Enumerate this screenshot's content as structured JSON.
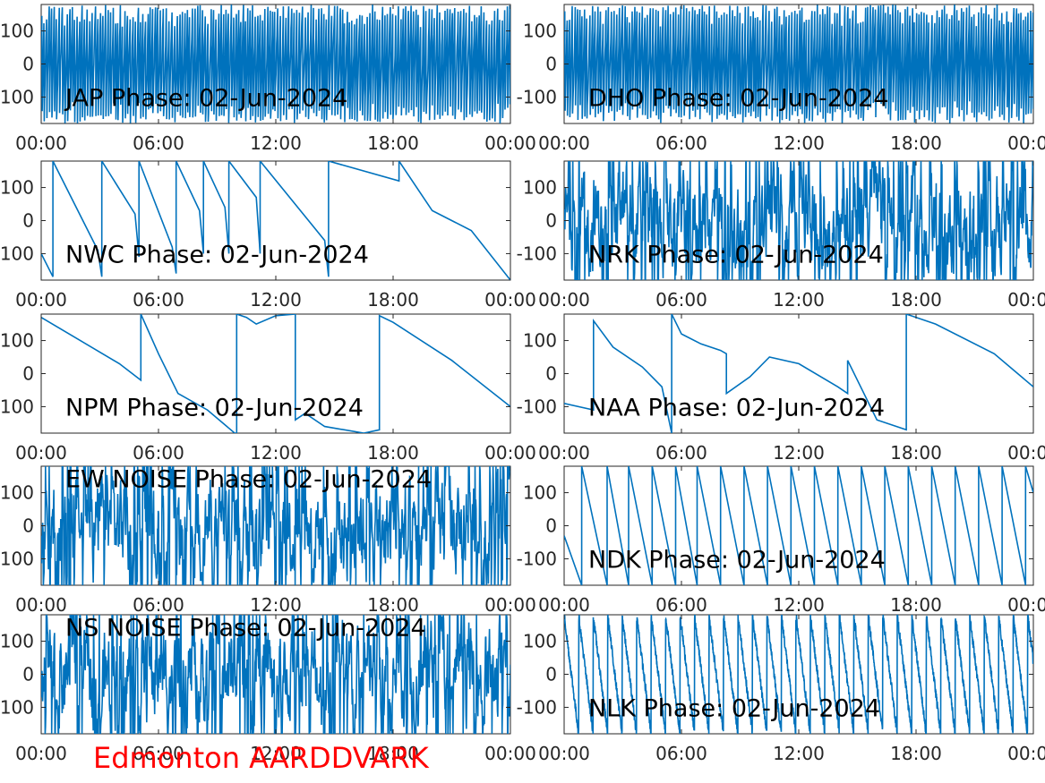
{
  "footer": {
    "label": "Edmonton AARDDVARK",
    "color": "#ff0000"
  },
  "style": {
    "line_color": "#0072bd",
    "axis_color": "#262626",
    "background": "#ffffff"
  },
  "chart_data": [
    {
      "type": "line",
      "title": "JAP Phase: 02-Jun-2024",
      "pattern": "dense",
      "x_ticks": [
        "00:00",
        "06:00",
        "12:00",
        "18:00",
        "00:00"
      ],
      "y_ticks": [
        "100",
        "0",
        "-100"
      ],
      "xlim_hours": [
        0,
        24
      ],
      "ylim": [
        -180,
        180
      ],
      "series": [
        {
          "x_hours": [],
          "y": []
        }
      ]
    },
    {
      "type": "line",
      "title": "DHO Phase: 02-Jun-2024",
      "pattern": "dense",
      "x_ticks": [
        "00:00",
        "06:00",
        "12:00",
        "18:00",
        "00:00"
      ],
      "y_ticks": [
        "100",
        "0",
        "-100"
      ],
      "xlim_hours": [
        0,
        24
      ],
      "ylim": [
        -180,
        180
      ],
      "series": [
        {
          "x_hours": [],
          "y": []
        }
      ]
    },
    {
      "type": "line",
      "title": "NWC Phase: 02-Jun-2024",
      "pattern": "sawtooth",
      "x_ticks": [
        "00:00",
        "06:00",
        "12:00",
        "18:00",
        "00:00"
      ],
      "y_ticks": [
        "100",
        "0",
        "-100"
      ],
      "xlim_hours": [
        0,
        24
      ],
      "ylim": [
        -180,
        180
      ],
      "series": [
        {
          "x_hours": [
            0,
            0.6,
            0.6,
            2.9,
            3.1,
            3.1,
            4.8,
            5.0,
            5.0,
            6.7,
            6.9,
            6.9,
            8.1,
            8.3,
            8.3,
            9.4,
            9.6,
            9.6,
            11.0,
            11.2,
            11.2,
            14.5,
            14.7,
            14.7,
            18.3,
            18.3,
            20.0,
            22.0,
            24.0
          ],
          "y": [
            -100,
            -170,
            180,
            -90,
            -170,
            180,
            20,
            -110,
            180,
            -80,
            -160,
            180,
            30,
            -100,
            180,
            40,
            -100,
            180,
            70,
            -100,
            180,
            -60,
            -170,
            180,
            120,
            180,
            30,
            -30,
            -180
          ]
        }
      ]
    },
    {
      "type": "line",
      "title": "NRK Phase: 02-Jun-2024",
      "pattern": "noisy",
      "x_ticks": [
        "00:00",
        "06:00",
        "12:00",
        "18:00",
        "00:00"
      ],
      "y_ticks": [
        "100",
        "0",
        "-100"
      ],
      "xlim_hours": [
        0,
        24
      ],
      "ylim": [
        -180,
        180
      ],
      "series": [
        {
          "x_hours": [],
          "y": []
        }
      ]
    },
    {
      "type": "line",
      "title": "NPM Phase: 02-Jun-2024",
      "pattern": "sawtooth",
      "x_ticks": [
        "00:00",
        "06:00",
        "12:00",
        "18:00",
        "00:00"
      ],
      "y_ticks": [
        "100",
        "0",
        "-100"
      ],
      "xlim_hours": [
        0,
        24
      ],
      "ylim": [
        -180,
        180
      ],
      "series": [
        {
          "x_hours": [
            0,
            2.0,
            4.0,
            5.1,
            5.1,
            6.0,
            7.0,
            8.5,
            9.9,
            10.0,
            10.0,
            10.5,
            11.0,
            12.0,
            13.0,
            13.0,
            13.5,
            14.5,
            16.5,
            17.3,
            17.3,
            18.0,
            21.0,
            24.0
          ],
          "y": [
            170,
            100,
            30,
            -20,
            180,
            60,
            -60,
            -110,
            -180,
            -180,
            180,
            170,
            150,
            175,
            180,
            -140,
            -120,
            -160,
            -180,
            -170,
            175,
            155,
            40,
            -100
          ]
        }
      ]
    },
    {
      "type": "line",
      "title": "NAA Phase: 02-Jun-2024",
      "pattern": "sawtooth",
      "x_ticks": [
        "00:00",
        "06:00",
        "12:00",
        "18:00",
        "00:00"
      ],
      "y_ticks": [
        "100",
        "0",
        "-100"
      ],
      "xlim_hours": [
        0,
        24
      ],
      "ylim": [
        -180,
        180
      ],
      "series": [
        {
          "x_hours": [
            0,
            1.5,
            1.5,
            2.5,
            4.0,
            5.0,
            5.5,
            5.5,
            6.0,
            7.0,
            8.0,
            8.3,
            8.3,
            9.5,
            10.5,
            12.0,
            14.0,
            14.5,
            14.5,
            16.0,
            17.5,
            17.5,
            19.0,
            22.0,
            24.0
          ],
          "y": [
            -90,
            -110,
            160,
            80,
            20,
            -40,
            -180,
            180,
            120,
            90,
            70,
            60,
            -60,
            -10,
            50,
            30,
            -40,
            -60,
            40,
            -140,
            -170,
            180,
            150,
            60,
            -40
          ]
        }
      ]
    },
    {
      "type": "line",
      "title": "EW NOISE Phase: 02-Jun-2024",
      "pattern": "noisy",
      "x_ticks": [
        "00:00",
        "06:00",
        "12:00",
        "18:00",
        "00:00"
      ],
      "y_ticks": [
        "100",
        "0",
        "-100"
      ],
      "xlim_hours": [
        0,
        24
      ],
      "ylim": [
        -180,
        180
      ],
      "series": [
        {
          "x_hours": [],
          "y": []
        }
      ]
    },
    {
      "type": "line",
      "title": "NDK Phase: 02-Jun-2024",
      "pattern": "sawtooth",
      "x_ticks": [
        "00:00",
        "06:00",
        "12:00",
        "18:00",
        "00:00"
      ],
      "y_ticks": [
        "100",
        "0",
        "-100"
      ],
      "xlim_hours": [
        0,
        24
      ],
      "ylim": [
        -180,
        180
      ],
      "series": [
        {
          "x_hours": [
            0,
            0.9,
            0.9,
            2.2,
            2.2,
            3.3,
            3.3,
            4.5,
            4.5,
            5.7,
            5.7,
            6.8,
            6.8,
            8.0,
            8.0,
            9.2,
            9.2,
            10.4,
            10.4,
            11.6,
            11.6,
            12.8,
            12.8,
            14.0,
            14.0,
            15.2,
            15.2,
            16.4,
            16.4,
            17.6,
            17.6,
            18.8,
            18.8,
            20.0,
            20.0,
            21.2,
            21.2,
            22.4,
            22.4,
            23.6,
            23.6,
            24.0
          ],
          "y": [
            -30,
            -180,
            180,
            -180,
            180,
            -180,
            180,
            -180,
            180,
            -180,
            180,
            -180,
            180,
            -180,
            180,
            -180,
            180,
            -180,
            180,
            -180,
            180,
            -180,
            180,
            -180,
            180,
            -180,
            180,
            -180,
            180,
            -180,
            180,
            -180,
            180,
            -180,
            180,
            -180,
            180,
            -180,
            180,
            -180,
            180,
            100
          ]
        }
      ]
    },
    {
      "type": "line",
      "title": "NS NOISE Phase: 02-Jun-2024",
      "pattern": "noisy",
      "x_ticks": [
        "00:00",
        "06:00",
        "12:00",
        "18:00",
        "00:00"
      ],
      "y_ticks": [
        "100",
        "0",
        "-100"
      ],
      "xlim_hours": [
        0,
        24
      ],
      "ylim": [
        -180,
        180
      ],
      "series": [
        {
          "x_hours": [],
          "y": []
        }
      ]
    },
    {
      "type": "line",
      "title": "NLK Phase: 02-Jun-2024",
      "pattern": "sawtooth_fast",
      "x_ticks": [
        "00:00",
        "06:00",
        "12:00",
        "18:00",
        "00:00"
      ],
      "y_ticks": [
        "100",
        "0",
        "-100"
      ],
      "xlim_hours": [
        0,
        24
      ],
      "ylim": [
        -180,
        180
      ],
      "series": [
        {
          "x_hours": [],
          "y": []
        }
      ]
    }
  ]
}
